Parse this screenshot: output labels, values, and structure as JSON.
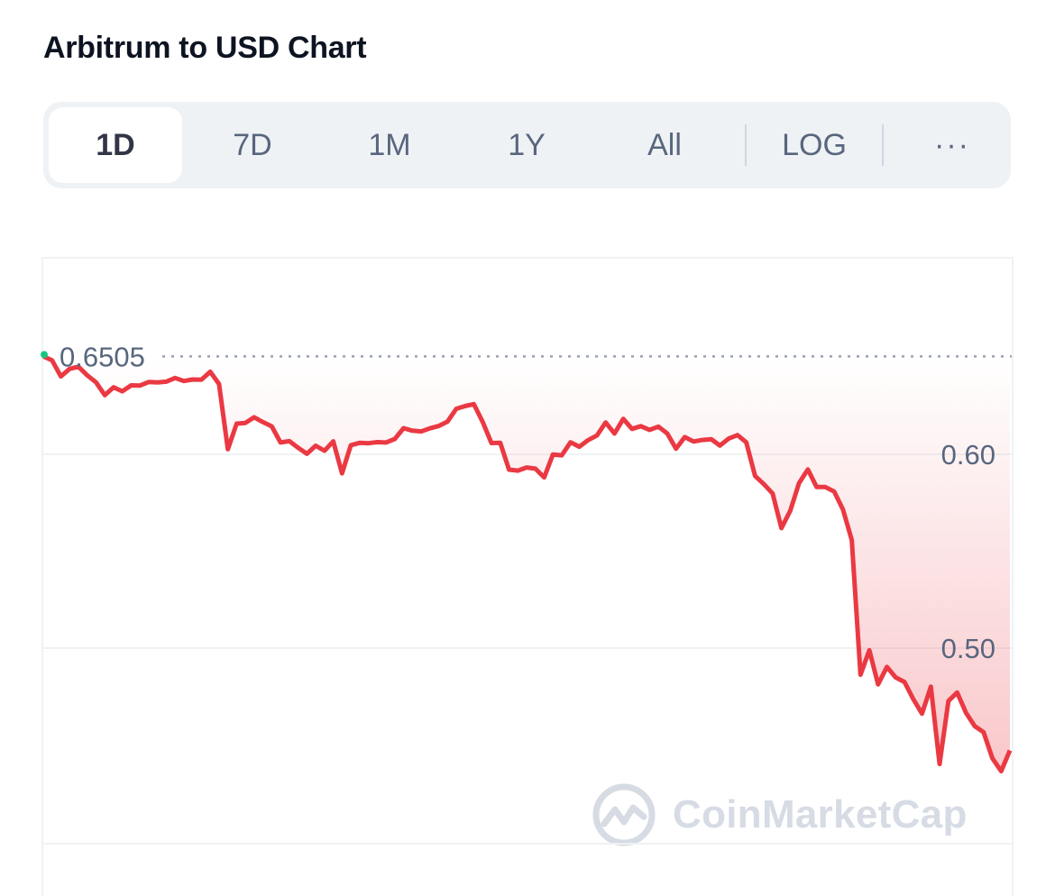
{
  "header": {
    "title": "Arbitrum to USD Chart"
  },
  "range_tabs": [
    {
      "label": "1D",
      "active": true
    },
    {
      "label": "7D",
      "active": false
    },
    {
      "label": "1M",
      "active": false
    },
    {
      "label": "1Y",
      "active": false
    },
    {
      "label": "All",
      "active": false
    }
  ],
  "log_label": "LOG",
  "more_label": "···",
  "watermark": "CoinMarketCap",
  "colors": {
    "line": "#ea3943",
    "start_dot": "#16c784",
    "grid": "#eff2f5",
    "axis_text": "#58667e"
  },
  "chart_data": {
    "type": "area",
    "reference_line": {
      "value": 0.6505,
      "label": "0.6505",
      "style": "dotted"
    },
    "yticks": [
      0.6,
      0.5
    ],
    "ytick_labels": [
      "0.60",
      "0.50"
    ],
    "ylim": [
      0.4,
      0.7
    ],
    "y_axis_position": "right",
    "grid": true,
    "series": [
      {
        "values": [
          0.6505,
          0.6485,
          0.6402,
          0.6441,
          0.6452,
          0.6408,
          0.6371,
          0.6305,
          0.6346,
          0.6325,
          0.6356,
          0.6355,
          0.6373,
          0.6371,
          0.6375,
          0.6394,
          0.6378,
          0.6386,
          0.6385,
          0.6426,
          0.6363,
          0.6026,
          0.6158,
          0.6162,
          0.6191,
          0.6166,
          0.6144,
          0.6061,
          0.6068,
          0.6034,
          0.6003,
          0.6044,
          0.6018,
          0.6067,
          0.5902,
          0.6047,
          0.6059,
          0.6057,
          0.6063,
          0.6061,
          0.6079,
          0.6135,
          0.6122,
          0.6118,
          0.6134,
          0.6146,
          0.6169,
          0.6235,
          0.6249,
          0.6259,
          0.6167,
          0.6058,
          0.6059,
          0.5921,
          0.5916,
          0.5932,
          0.5926,
          0.5881,
          0.5999,
          0.5995,
          0.6062,
          0.6039,
          0.6073,
          0.6097,
          0.6164,
          0.6107,
          0.6183,
          0.6131,
          0.6145,
          0.6126,
          0.6143,
          0.6108,
          0.6029,
          0.6089,
          0.6066,
          0.6074,
          0.6078,
          0.6045,
          0.6081,
          0.6099,
          0.6062,
          0.5888,
          0.5846,
          0.5797,
          0.5619,
          0.5709,
          0.5851,
          0.5922,
          0.5831,
          0.5831,
          0.5808,
          0.5716,
          0.5558,
          0.4863,
          0.4989,
          0.4813,
          0.4903,
          0.4849,
          0.4825,
          0.4737,
          0.4662,
          0.4801,
          0.4402,
          0.4727,
          0.4771,
          0.4666,
          0.4597,
          0.4566,
          0.4432,
          0.4365,
          0.4472
        ]
      }
    ]
  }
}
